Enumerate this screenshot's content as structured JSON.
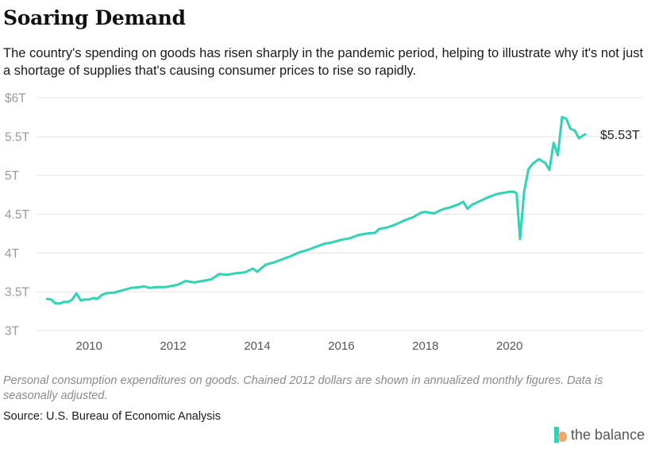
{
  "header": {
    "title": "Soaring Demand",
    "subtitle": "The country's spending on goods has risen sharply in the pandemic period, helping to illustrate why it's not just a shortage of supplies that's causing consumer prices to rise so rapidly."
  },
  "footer": {
    "note": "Personal consumption expenditures on goods. Chained 2012 dollars are shown in annualized monthly figures. Data is seasonally adjusted.",
    "source": "Source: U.S. Bureau of Economic Analysis",
    "brand": "the balance"
  },
  "colors": {
    "line": "#2fd3b5",
    "grid": "#e4e4e4",
    "tick": "#9a9a9a",
    "brand_bar": "#2fd3b5",
    "brand_dot": "#f3a76c"
  },
  "chart_data": {
    "type": "line",
    "title": "",
    "xlabel": "",
    "ylabel": "",
    "ylim": [
      3,
      6
    ],
    "xlim": [
      2008.75,
      2021.95
    ],
    "yticks": [
      3,
      3.5,
      4,
      4.5,
      5,
      5.5,
      6
    ],
    "ytick_labels": [
      "3T",
      "3.5T",
      "4T",
      "4.5T",
      "5T",
      "5.5T",
      "$6T"
    ],
    "xticks": [
      2010,
      2012,
      2014,
      2016,
      2018,
      2020
    ],
    "xtick_labels": [
      "2010",
      "2012",
      "2014",
      "2016",
      "2018",
      "2020"
    ],
    "grid": true,
    "end_label": "$5.53T",
    "series": [
      {
        "x": [
          2009.0,
          2009.1,
          2009.2,
          2009.3,
          2009.4,
          2009.5,
          2009.6,
          2009.7,
          2009.8,
          2009.9,
          2010.0,
          2010.1,
          2010.2,
          2010.3,
          2010.4,
          2010.6,
          2010.8,
          2011.0,
          2011.2,
          2011.3,
          2011.45,
          2011.6,
          2011.8,
          2012.0,
          2012.1,
          2012.3,
          2012.5,
          2012.7,
          2012.9,
          2013.1,
          2013.3,
          2013.5,
          2013.7,
          2013.9,
          2014.0,
          2014.2,
          2014.4,
          2014.6,
          2014.8,
          2015.0,
          2015.2,
          2015.4,
          2015.6,
          2015.8,
          2016.0,
          2016.2,
          2016.4,
          2016.6,
          2016.8,
          2016.9,
          2017.1,
          2017.3,
          2017.5,
          2017.7,
          2017.9,
          2018.0,
          2018.2,
          2018.4,
          2018.6,
          2018.8,
          2018.9,
          2019.0,
          2019.1,
          2019.3,
          2019.5,
          2019.7,
          2019.9,
          2020.0,
          2020.1,
          2020.17,
          2020.25,
          2020.35,
          2020.45,
          2020.55,
          2020.7,
          2020.85,
          2020.95,
          2021.05,
          2021.15,
          2021.25,
          2021.35,
          2021.45,
          2021.55,
          2021.65,
          2021.8
        ],
        "values": [
          3.41,
          3.4,
          3.35,
          3.35,
          3.37,
          3.37,
          3.4,
          3.48,
          3.39,
          3.4,
          3.4,
          3.42,
          3.41,
          3.46,
          3.48,
          3.49,
          3.52,
          3.55,
          3.56,
          3.57,
          3.55,
          3.56,
          3.56,
          3.58,
          3.59,
          3.64,
          3.62,
          3.64,
          3.66,
          3.73,
          3.72,
          3.74,
          3.75,
          3.8,
          3.76,
          3.85,
          3.88,
          3.92,
          3.96,
          4.01,
          4.04,
          4.08,
          4.12,
          4.14,
          4.17,
          4.19,
          4.23,
          4.25,
          4.26,
          4.31,
          4.33,
          4.37,
          4.42,
          4.46,
          4.52,
          4.53,
          4.51,
          4.56,
          4.59,
          4.63,
          4.66,
          4.57,
          4.62,
          4.67,
          4.72,
          4.76,
          4.78,
          4.79,
          4.79,
          4.77,
          4.18,
          4.8,
          5.08,
          5.15,
          5.21,
          5.16,
          5.07,
          5.42,
          5.26,
          5.75,
          5.73,
          5.6,
          5.58,
          5.48,
          5.53
        ]
      }
    ]
  }
}
